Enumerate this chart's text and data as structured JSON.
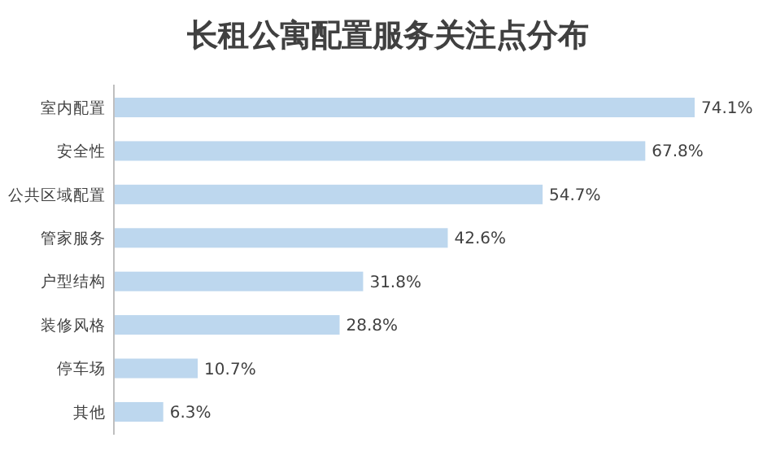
{
  "chart_data": {
    "type": "bar",
    "orientation": "horizontal",
    "title": "长租公寓配置服务关注点分布",
    "categories": [
      "室内配置",
      "安全性",
      "公共区域配置",
      "管家服务",
      "户型结构",
      "装修风格",
      "停车场",
      "其他"
    ],
    "values": [
      74.1,
      67.8,
      54.7,
      42.6,
      31.8,
      28.8,
      10.7,
      6.3
    ],
    "value_labels": [
      "74.1%",
      "67.8%",
      "54.7%",
      "42.6%",
      "31.8%",
      "28.8%",
      "10.7%",
      "6.3%"
    ],
    "color": "#bdd7ee"
  }
}
